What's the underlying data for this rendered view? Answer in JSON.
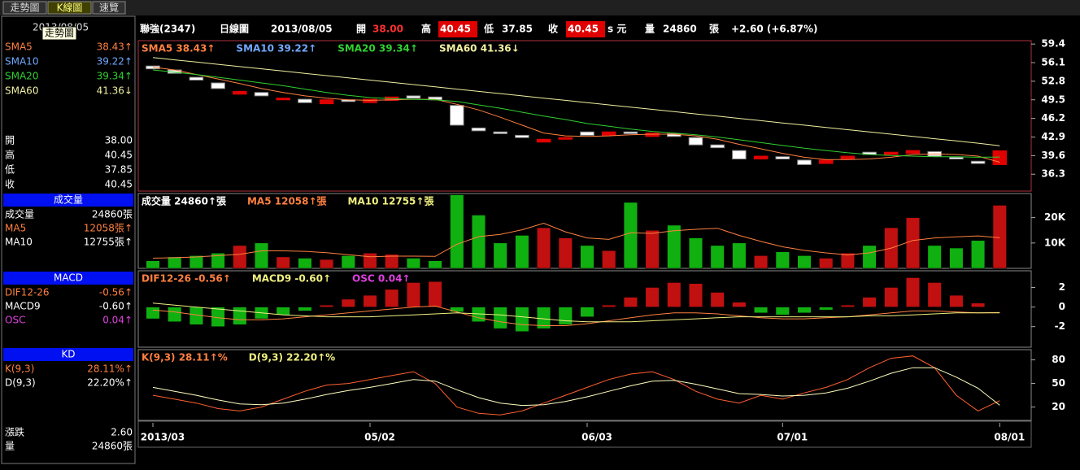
{
  "tabs": [
    "走勢圖",
    "K線圖",
    "速覽"
  ],
  "tooltip": "走勢圖",
  "header": {
    "name": "聯強(2347)",
    "period": "日線圖",
    "date": "2013/08/05",
    "open_label": "開",
    "open": "38.00",
    "high_label": "高",
    "high": "40.45",
    "low_label": "低",
    "low": "37.85",
    "close_label": "收",
    "close": "40.45",
    "unit": "s 元",
    "vol_label": "量",
    "vol": "24860",
    "vol_unit": "張",
    "change": "+2.60 (+6.87%)"
  },
  "left": {
    "date": "2013/08/05",
    "ma": [
      {
        "label": "SMA5",
        "value": "38.43↑",
        "color": "#ff8040"
      },
      {
        "label": "SMA10",
        "value": "39.22↑",
        "color": "#70a8ff"
      },
      {
        "label": "SMA20",
        "value": "39.34↑",
        "color": "#30d030"
      },
      {
        "label": "SMA60",
        "value": "41.36↓",
        "color": "#f0f0a0"
      }
    ],
    "ohlc": [
      {
        "label": "開",
        "value": "38.00"
      },
      {
        "label": "高",
        "value": "40.45"
      },
      {
        "label": "低",
        "value": "37.85"
      },
      {
        "label": "收",
        "value": "40.45"
      }
    ],
    "sections": [
      {
        "title": "成交量",
        "rows": [
          {
            "label": "成交量",
            "value": "24860張",
            "color": "#ffffff"
          },
          {
            "label": "MA5",
            "value": "12058張↑",
            "color": "#ff8040"
          },
          {
            "label": "MA10",
            "value": "12755張↑",
            "color": "#ffffff"
          }
        ]
      },
      {
        "title": "MACD",
        "rows": [
          {
            "label": "DIF12-26",
            "value": "-0.56↑",
            "color": "#ff8040"
          },
          {
            "label": "MACD9",
            "value": "-0.60↑",
            "color": "#ffffff"
          },
          {
            "label": "OSC",
            "value": "0.04↑",
            "color": "#e040e0"
          }
        ]
      },
      {
        "title": "KD",
        "rows": [
          {
            "label": "K(9,3)",
            "value": "28.11%↑",
            "color": "#ff8040"
          },
          {
            "label": "D(9,3)",
            "value": "22.20%↑",
            "color": "#ffffff"
          }
        ]
      }
    ],
    "footer": [
      {
        "label": "漲跌",
        "value": "2.60"
      },
      {
        "label": "量",
        "value": "24860張"
      }
    ]
  },
  "chart_data": [
    {
      "type": "candlestick",
      "legend": [
        {
          "label": "SMA5 38.43↑",
          "color": "#ff8040"
        },
        {
          "label": "SMA10 39.22↑",
          "color": "#70a8ff"
        },
        {
          "label": "SMA20 39.34↑",
          "color": "#30d030"
        },
        {
          "label": "SMA60 41.36↓",
          "color": "#f0f0a0"
        }
      ],
      "categories": [
        "2013/03",
        null,
        null,
        null,
        null,
        null,
        null,
        null,
        null,
        null,
        "05/02",
        null,
        null,
        null,
        null,
        null,
        null,
        null,
        null,
        null,
        "06/03",
        null,
        null,
        null,
        null,
        null,
        null,
        null,
        null,
        "07/01",
        null,
        null,
        null,
        null,
        null,
        null,
        null,
        null,
        null,
        "08/01"
      ],
      "open": [
        55.5,
        54.8,
        53.5,
        52.5,
        50.5,
        50.8,
        49.5,
        49.6,
        48.8,
        49.5,
        49.0,
        49.4,
        50.2,
        50.0,
        48.5,
        44.5,
        43.8,
        43.2,
        42.0,
        42.5,
        43.8,
        43.2,
        43.8,
        43.0,
        43.5,
        42.8,
        41.5,
        40.5,
        39.0,
        39.4,
        38.8,
        38.2,
        39.0,
        40.2,
        39.8,
        40.0,
        40.3,
        39.3,
        38.6,
        38.0
      ],
      "close": [
        55.0,
        54.2,
        53.0,
        51.5,
        51.0,
        50.2,
        49.8,
        49.0,
        49.5,
        49.2,
        49.6,
        50.0,
        49.8,
        49.5,
        45.0,
        44.0,
        43.5,
        42.8,
        42.5,
        42.8,
        43.2,
        43.8,
        43.5,
        43.6,
        43.0,
        41.5,
        41.0,
        39.0,
        39.5,
        39.0,
        38.0,
        38.8,
        39.5,
        39.8,
        40.2,
        40.5,
        39.5,
        39.0,
        38.2,
        40.45
      ],
      "up_color": "#e00000",
      "down_color": "#ffffff",
      "series": [
        {
          "name": "SMA5",
          "color": "#ff8040",
          "values": [
            55.3,
            54.8,
            54.0,
            53.2,
            52.4,
            51.5,
            50.8,
            50.2,
            49.8,
            49.5,
            49.4,
            49.5,
            49.6,
            49.6,
            48.7,
            47.7,
            46.4,
            45.0,
            43.6,
            43.1,
            43.0,
            43.1,
            43.3,
            43.4,
            43.4,
            43.1,
            42.5,
            41.6,
            40.8,
            40.0,
            39.3,
            38.9,
            38.9,
            39.0,
            39.3,
            39.8,
            39.9,
            39.8,
            39.5,
            38.43
          ]
        },
        {
          "name": "SMA20",
          "color": "#30d030",
          "values": [
            54.8,
            54.4,
            54.0,
            53.5,
            53.0,
            52.5,
            52.0,
            51.4,
            50.8,
            50.3,
            49.9,
            49.7,
            49.6,
            49.5,
            49.2,
            48.6,
            48.0,
            47.3,
            46.6,
            46.0,
            45.3,
            44.8,
            44.3,
            43.9,
            43.6,
            43.3,
            42.9,
            42.4,
            41.9,
            41.4,
            40.9,
            40.5,
            40.1,
            39.8,
            39.6,
            39.5,
            39.4,
            39.4,
            39.3,
            39.34
          ]
        },
        {
          "name": "SMA60",
          "color": "#f0f0a0",
          "values": [
            57.0,
            56.6,
            56.2,
            55.8,
            55.4,
            55.0,
            54.6,
            54.2,
            53.8,
            53.4,
            53.0,
            52.6,
            52.2,
            51.8,
            51.4,
            51.0,
            50.6,
            50.2,
            49.8,
            49.4,
            49.0,
            48.6,
            48.2,
            47.8,
            47.4,
            47.0,
            46.6,
            46.2,
            45.8,
            45.4,
            45.0,
            44.6,
            44.2,
            43.8,
            43.4,
            43.0,
            42.6,
            42.2,
            41.8,
            41.36
          ]
        }
      ],
      "ylim": [
        33.3,
        60
      ],
      "yticks": [
        59.4,
        56.1,
        52.8,
        49.5,
        46.2,
        42.9,
        39.6,
        36.3
      ]
    },
    {
      "type": "volume",
      "legend": [
        {
          "label": "成交量 24860↑張",
          "color": "#ffffff"
        },
        {
          "label": "MA5 12058↑張",
          "color": "#ff8040"
        },
        {
          "label": "MA10 12755↑張",
          "color": "#f0f080"
        }
      ],
      "values": [
        3000,
        4500,
        5000,
        6000,
        9000,
        10000,
        4500,
        4000,
        3500,
        5000,
        6000,
        5500,
        4000,
        3000,
        29000,
        21000,
        10000,
        13000,
        16000,
        12000,
        9000,
        7000,
        26000,
        15000,
        17000,
        12000,
        9000,
        10000,
        5000,
        6500,
        5000,
        4000,
        6000,
        9000,
        16000,
        20000,
        9000,
        8000,
        11000,
        24860
      ],
      "up_color": "#c01010",
      "down_color": "#10b010",
      "series": [
        {
          "name": "MA5",
          "color": "#ff8040",
          "values": [
            4000,
            4200,
            4500,
            5000,
            5500,
            6900,
            6900,
            6700,
            6200,
            5400,
            4600,
            4800,
            4800,
            4700,
            9500,
            12500,
            13400,
            15200,
            17800,
            14400,
            12000,
            11400,
            14000,
            13800,
            14800,
            15400,
            15800,
            13000,
            10600,
            8500,
            7100,
            6100,
            5300,
            6100,
            8000,
            11000,
            12000,
            12400,
            12800,
            12058
          ]
        }
      ],
      "ylim": [
        0,
        29500
      ],
      "yticks": [
        {
          "value": 10000,
          "label": "10K"
        },
        {
          "value": 20000,
          "label": "20K"
        }
      ]
    },
    {
      "type": "macd",
      "legend": [
        {
          "label": "DIF12-26 -0.56↑",
          "color": "#ff8040"
        },
        {
          "label": "MACD9 -0.60↑",
          "color": "#f0f080"
        },
        {
          "label": "OSC 0.04↑",
          "color": "#e040e0"
        }
      ],
      "values": [
        -1.2,
        -1.5,
        -1.8,
        -2.0,
        -1.8,
        -1.2,
        -0.8,
        -0.4,
        0.2,
        0.8,
        1.2,
        1.8,
        2.5,
        2.6,
        -0.5,
        -1.5,
        -2.2,
        -2.5,
        -2.2,
        -1.8,
        -1.0,
        0.2,
        1.0,
        2.0,
        2.5,
        2.4,
        1.5,
        0.5,
        -0.6,
        -0.8,
        -0.6,
        -0.3,
        0.2,
        1.0,
        2.0,
        3.0,
        2.5,
        1.2,
        0.4,
        0.04
      ],
      "up_color": "#c01010",
      "down_color": "#10b010",
      "series": [
        {
          "name": "DIF12-26",
          "color": "#ff8040",
          "values": [
            -0.3,
            -0.5,
            -0.8,
            -1.1,
            -1.3,
            -1.3,
            -1.2,
            -1.0,
            -0.8,
            -0.6,
            -0.4,
            -0.2,
            0.0,
            0.1,
            -0.5,
            -1.1,
            -1.5,
            -1.8,
            -1.9,
            -1.9,
            -1.7,
            -1.4,
            -1.1,
            -0.8,
            -0.6,
            -0.6,
            -0.7,
            -0.9,
            -1.1,
            -1.2,
            -1.2,
            -1.1,
            -1.0,
            -0.8,
            -0.6,
            -0.4,
            -0.4,
            -0.5,
            -0.6,
            -0.56
          ]
        },
        {
          "name": "MACD9",
          "color": "#f0f080",
          "values": [
            0.4,
            0.2,
            0.0,
            -0.2,
            -0.4,
            -0.6,
            -0.8,
            -0.9,
            -1.0,
            -1.0,
            -1.0,
            -0.9,
            -0.8,
            -0.7,
            -0.6,
            -0.7,
            -0.8,
            -1.0,
            -1.2,
            -1.4,
            -1.5,
            -1.5,
            -1.5,
            -1.4,
            -1.3,
            -1.2,
            -1.1,
            -1.0,
            -1.0,
            -1.0,
            -1.0,
            -1.0,
            -1.0,
            -0.9,
            -0.9,
            -0.8,
            -0.7,
            -0.6,
            -0.6,
            -0.6
          ]
        }
      ],
      "ylim": [
        -4.1,
        3.7
      ],
      "yticks": [
        2,
        0,
        -2
      ]
    },
    {
      "type": "kd",
      "legend": [
        {
          "label": "K(9,3) 28.11↑%",
          "color": "#ff8040"
        },
        {
          "label": "D(9,3) 22.20↑%",
          "color": "#f0f080"
        }
      ],
      "series": [
        {
          "name": "K(9,3)",
          "color": "#ff6030",
          "values": [
            35,
            30,
            25,
            18,
            15,
            20,
            30,
            40,
            48,
            50,
            55,
            60,
            65,
            50,
            20,
            12,
            10,
            15,
            25,
            35,
            45,
            55,
            62,
            65,
            55,
            40,
            30,
            25,
            35,
            30,
            38,
            45,
            55,
            70,
            82,
            85,
            70,
            35,
            15,
            28.11
          ]
        },
        {
          "name": "D(9,3)",
          "color": "#ffffc0",
          "values": [
            45,
            40,
            35,
            29,
            24,
            23,
            25,
            30,
            36,
            41,
            45,
            50,
            55,
            53,
            42,
            32,
            25,
            22,
            23,
            27,
            33,
            40,
            47,
            53,
            54,
            49,
            43,
            37,
            36,
            34,
            35,
            38,
            44,
            53,
            63,
            70,
            70,
            58,
            44,
            22.2
          ]
        }
      ],
      "ylim": [
        3,
        93
      ],
      "yticks": [
        80,
        50,
        20
      ]
    }
  ]
}
